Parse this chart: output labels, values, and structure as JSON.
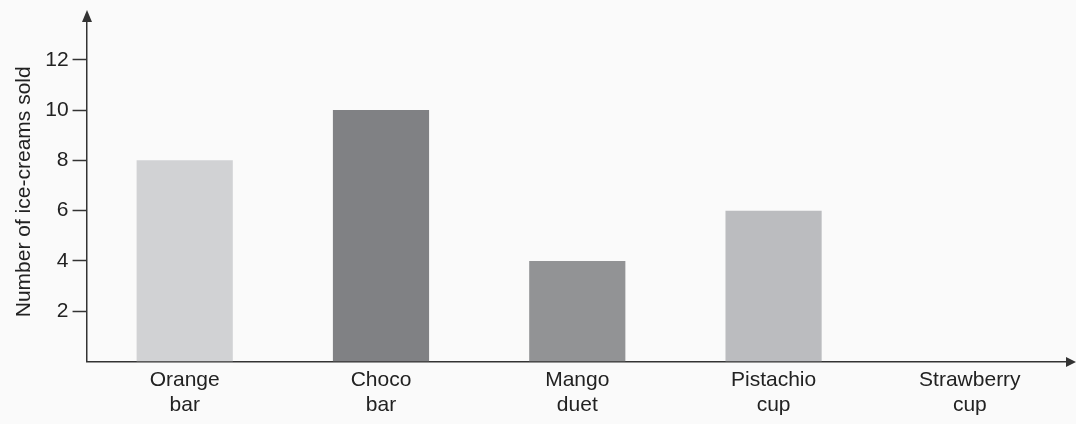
{
  "chart_data": {
    "type": "bar",
    "ylabel": "Number of ice-creams sold",
    "categories": [
      "Orange bar",
      "Choco bar",
      "Mango duet",
      "Pistachio cup",
      "Strawberry cup"
    ],
    "values": [
      8,
      10,
      4,
      6,
      0
    ],
    "colors": [
      "#d1d2d4",
      "#808184",
      "#929395",
      "#bbbcbf",
      "#bbbcbf"
    ],
    "ylim": [
      0,
      13.5
    ],
    "yticks": [
      2,
      4,
      6,
      8,
      10,
      12
    ],
    "grid": false,
    "legend": false
  }
}
